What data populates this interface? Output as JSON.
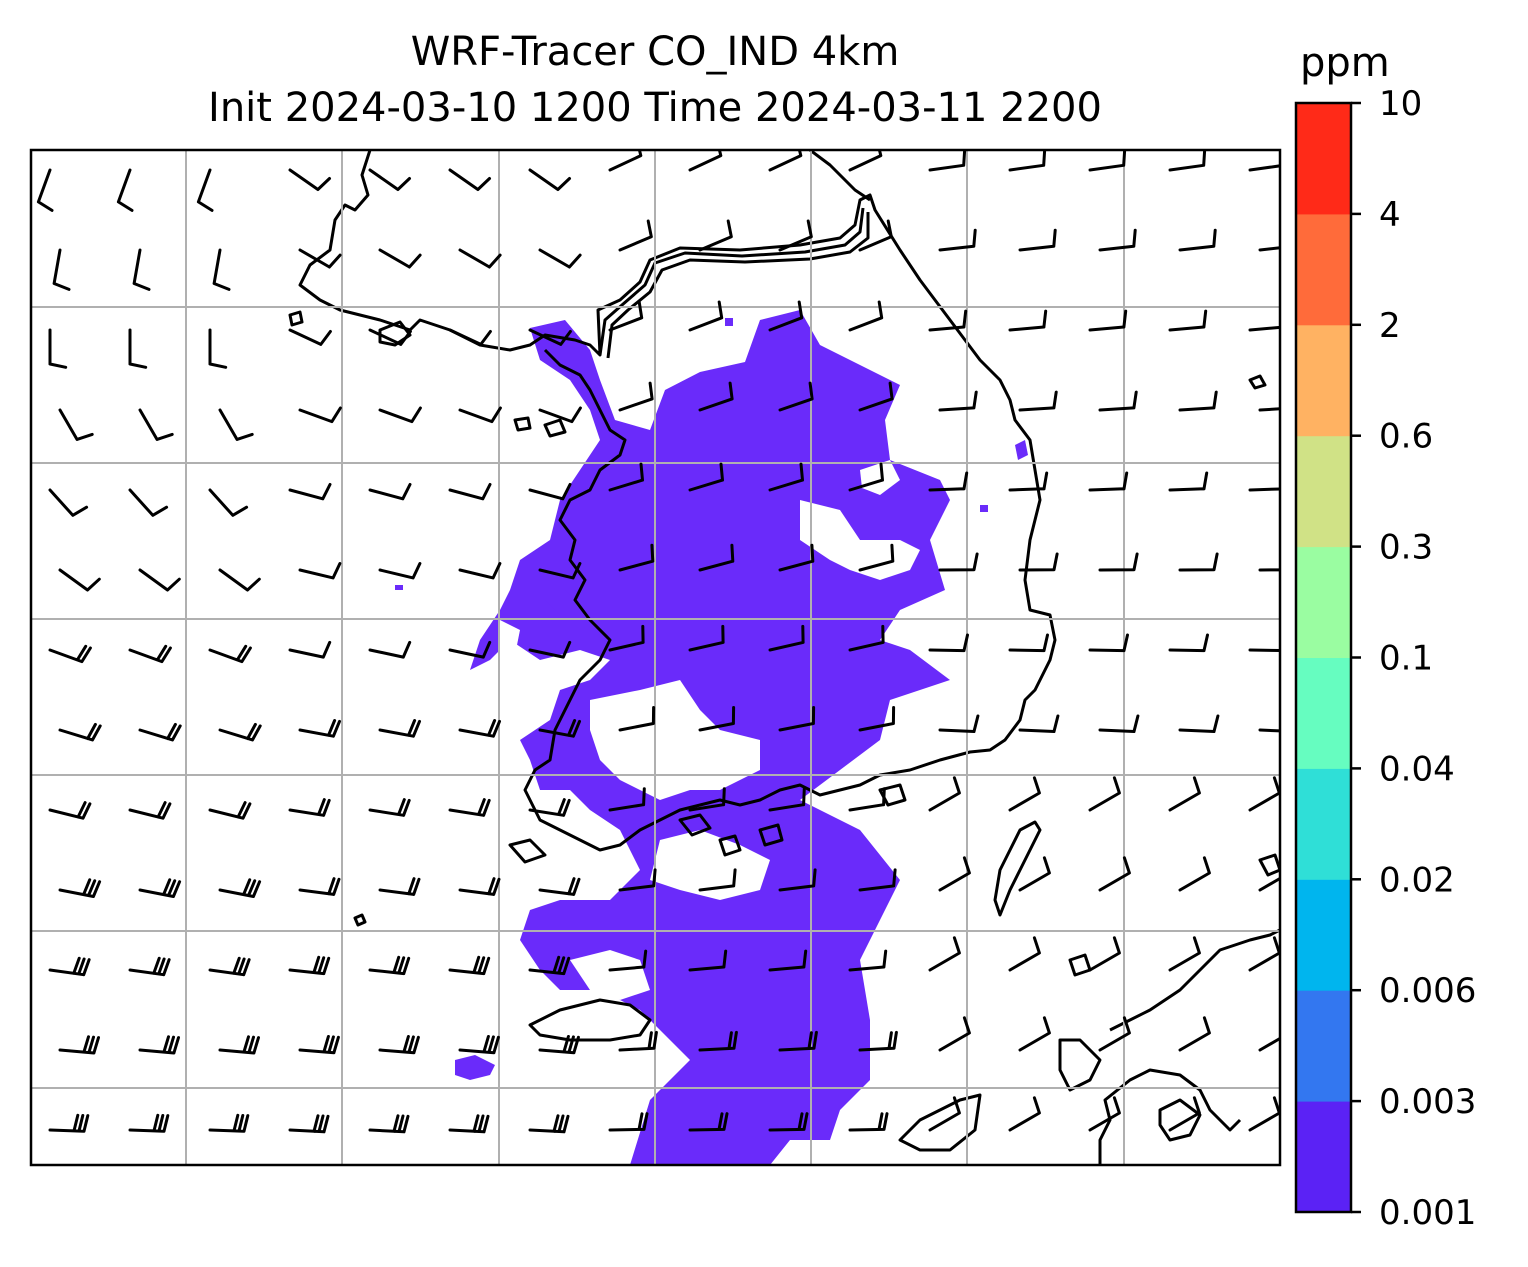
{
  "title_line1": "WRF-Tracer CO_IND 4km",
  "title_line2": "Init 2024-03-10 1200 Time 2024-03-11 2200",
  "colorbar": {
    "unit": "ppm",
    "levels": [
      "0.001",
      "0.003",
      "0.006",
      "0.02",
      "0.04",
      "0.1",
      "0.3",
      "0.6",
      "2",
      "4",
      "10"
    ],
    "colors": [
      "#5b22f5",
      "#3377f0",
      "#00b5ee",
      "#2fdfd7",
      "#66fdc0",
      "#9afda1",
      "#d0e286",
      "#ffb262",
      "#ff6b3a",
      "#ff2a18"
    ]
  },
  "map": {
    "plume_color": "#6a2bfa",
    "plume_level": "0.001-0.003",
    "gridlines": true
  }
}
